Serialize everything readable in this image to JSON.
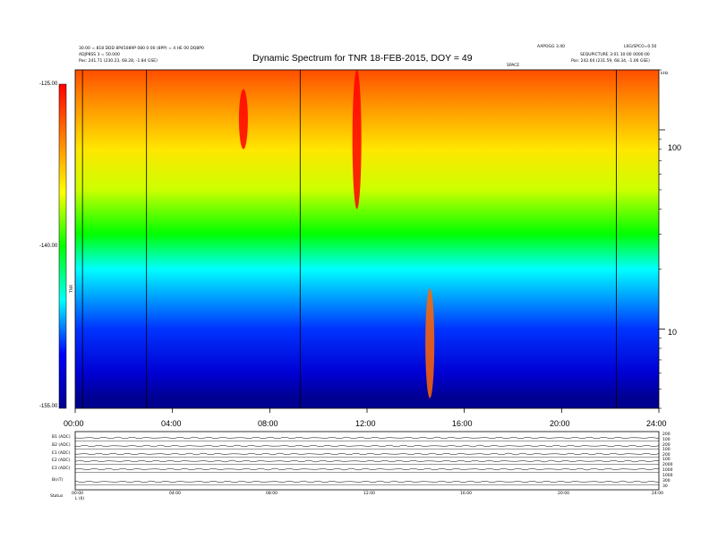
{
  "header": {
    "title": "Dynamic Spectrum for TNR 18-FEB-2015, DOY = 49",
    "left_line1": "30.00 = 818 DDD 8P45089P 080 0 00 (8PP) = 4 HE 00 DQ8P0",
    "left_line2": "ADJP8SS 3 = 50.000",
    "left_line3": "Pos:   241.71 (230.23, 68.28, -1.84 GSE)",
    "right_line1": "AAPOGG 3.40",
    "right_line2": "L0G/SPCO=0.50",
    "right_line3": "SEQUPICTURE  3:01  10:00  0000:00",
    "right_line4": "Pos:   242.64 (231.59, 68.34, -1.06 GSE)",
    "top_marker": "SPACE",
    "top_right_marker": "kHz"
  },
  "colorbar": {
    "labels": [
      "-125.00",
      "-140.00",
      "-155.00"
    ],
    "axis_label": "TNR",
    "color_stops": [
      "#ff0000",
      "#ff8000",
      "#ffff00",
      "#00ff00",
      "#00ffff",
      "#0000ff",
      "#000090"
    ]
  },
  "lower_panel": {
    "row_labels": [
      "B1 (ADC)",
      "B2 (ADC)",
      "E1 (ADC)",
      "E2 (ADC)",
      "E3 (ADC)",
      "B(nT)"
    ],
    "right_labels": [
      "200",
      "100",
      "200",
      "100",
      "200",
      "100",
      "2000",
      "1000",
      "1000",
      "300",
      "30"
    ],
    "x_labels": [
      "00:00",
      "04:00",
      "08:00",
      "12:00",
      "16:00",
      "20:00",
      "24:00"
    ],
    "footer_left": "Status",
    "footer_left2": "L (II)"
  },
  "chart_data": {
    "type": "heatmap",
    "title": "Dynamic Spectrum for TNR 18-FEB-2015, DOY = 49",
    "x_ticks": [
      "00:00",
      "04:00",
      "08:00",
      "12:00",
      "16:00",
      "20:00",
      "24:00"
    ],
    "xlim": [
      "00:00",
      "24:00"
    ],
    "y_ticks": [
      100,
      10
    ],
    "y_scale": "log",
    "ylim": [
      4,
      200
    ],
    "y_unit": "kHz",
    "colorbar_range_db": [
      -155,
      -125
    ],
    "vertical_lines_utc": [
      "00:18",
      "02:56",
      "09:15",
      "22:15"
    ],
    "features": [
      {
        "name": "background_by_frequency_khz",
        "points": [
          [
            4.5,
            -155
          ],
          [
            6,
            -152
          ],
          [
            10,
            -149
          ],
          [
            20,
            -145
          ],
          [
            30,
            -140
          ],
          [
            50,
            -136
          ],
          [
            80,
            -134
          ],
          [
            150,
            -130
          ],
          [
            200,
            -128
          ]
        ]
      },
      {
        "name": "burst",
        "time": "06:55",
        "freq_khz": [
          80,
          160
        ],
        "level_db": -125
      },
      {
        "name": "burst",
        "time": "11:35",
        "freq_khz": [
          40,
          200
        ],
        "level_db": -125
      },
      {
        "name": "burst",
        "time": "14:35",
        "freq_khz": [
          4.5,
          16
        ],
        "level_db": -129
      }
    ]
  }
}
